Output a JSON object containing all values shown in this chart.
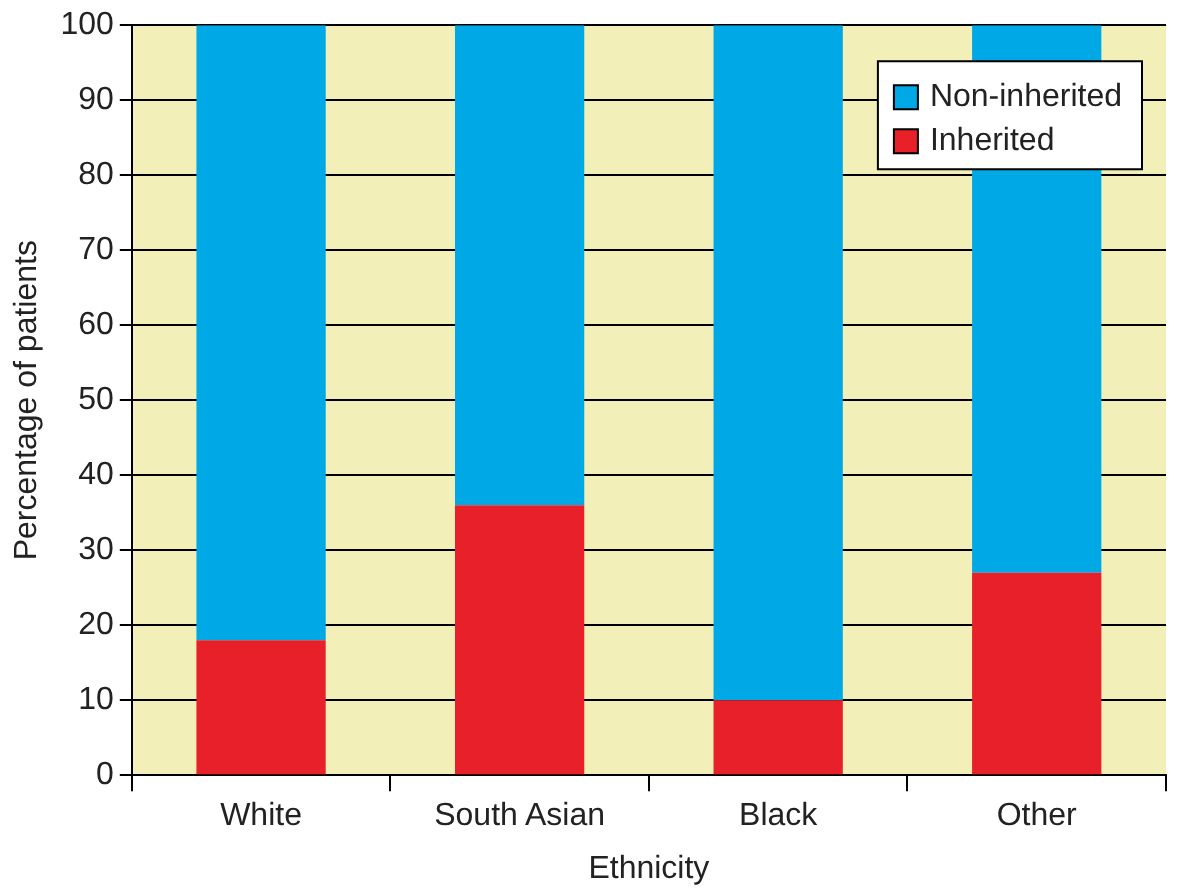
{
  "chart_data": {
    "type": "bar",
    "stacked": true,
    "xlabel": "Ethnicity",
    "ylabel": "Percentage of patients",
    "categories": [
      "White",
      "South Asian",
      "Black",
      "Other"
    ],
    "series": [
      {
        "name": "Inherited",
        "color": "#e8202a",
        "values": [
          18,
          36,
          10,
          27
        ]
      },
      {
        "name": "Non-inherited",
        "color": "#00a9e6",
        "values": [
          82,
          64,
          90,
          73
        ]
      }
    ],
    "ylim": [
      0,
      100
    ],
    "yticks": [
      0,
      10,
      20,
      30,
      40,
      50,
      60,
      70,
      80,
      90,
      100
    ],
    "grid": "y",
    "legend": "top right"
  }
}
